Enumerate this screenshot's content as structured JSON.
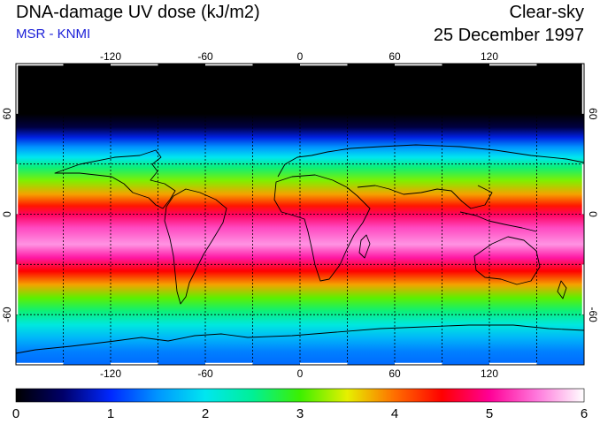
{
  "header": {
    "title": "DNA-damage UV dose (kJ/m2)",
    "source": "MSR - KNMI",
    "condition": "Clear-sky",
    "date": "25 December 1997"
  },
  "map": {
    "lon_range": [
      -180,
      180
    ],
    "lat_range": [
      -90,
      90
    ],
    "lon_ticks": [
      -120,
      -60,
      0,
      60,
      120
    ],
    "lat_ticks": [
      -60,
      0,
      60
    ],
    "lon_tick_labels": [
      "-120",
      "-60",
      "0",
      "60",
      "120"
    ],
    "lat_tick_labels": [
      "-60",
      "0",
      "60"
    ],
    "grid_lon_step": 30,
    "grid_lat_step": 30,
    "grid": "dotted"
  },
  "colorbar": {
    "min": 0,
    "max": 6,
    "tick_values": [
      0,
      1,
      2,
      3,
      4,
      5,
      6
    ],
    "tick_labels": [
      "0",
      "1",
      "2",
      "3",
      "4",
      "5",
      "6"
    ],
    "stops": [
      {
        "value": 0.0,
        "color": "#000000"
      },
      {
        "value": 0.5,
        "color": "#00006a"
      },
      {
        "value": 1.0,
        "color": "#0028ff"
      },
      {
        "value": 1.5,
        "color": "#0096ff"
      },
      {
        "value": 2.0,
        "color": "#00e6f0"
      },
      {
        "value": 2.5,
        "color": "#00f096"
      },
      {
        "value": 3.0,
        "color": "#3cf000"
      },
      {
        "value": 3.5,
        "color": "#e6f000"
      },
      {
        "value": 4.0,
        "color": "#ff6e00"
      },
      {
        "value": 4.5,
        "color": "#ff0000"
      },
      {
        "value": 5.0,
        "color": "#ff0096"
      },
      {
        "value": 5.5,
        "color": "#ff78dc"
      },
      {
        "value": 6.0,
        "color": "#ffffff"
      }
    ]
  },
  "zonal_dose_profile": [
    {
      "lat": 90,
      "dose": 0.0
    },
    {
      "lat": 60,
      "dose": 0.0
    },
    {
      "lat": 52,
      "dose": 0.3
    },
    {
      "lat": 46,
      "dose": 0.9
    },
    {
      "lat": 40,
      "dose": 1.5
    },
    {
      "lat": 34,
      "dose": 2.0
    },
    {
      "lat": 28,
      "dose": 2.6
    },
    {
      "lat": 20,
      "dose": 3.2
    },
    {
      "lat": 12,
      "dose": 3.8
    },
    {
      "lat": 5,
      "dose": 4.4
    },
    {
      "lat": 0,
      "dose": 4.8
    },
    {
      "lat": -8,
      "dose": 5.3
    },
    {
      "lat": -18,
      "dose": 5.6
    },
    {
      "lat": -26,
      "dose": 5.1
    },
    {
      "lat": -34,
      "dose": 4.5
    },
    {
      "lat": -42,
      "dose": 3.8
    },
    {
      "lat": -50,
      "dose": 3.1
    },
    {
      "lat": -58,
      "dose": 2.6
    },
    {
      "lat": -66,
      "dose": 2.1
    },
    {
      "lat": -74,
      "dose": 1.7
    },
    {
      "lat": -82,
      "dose": 1.4
    },
    {
      "lat": -90,
      "dose": 1.3
    }
  ]
}
